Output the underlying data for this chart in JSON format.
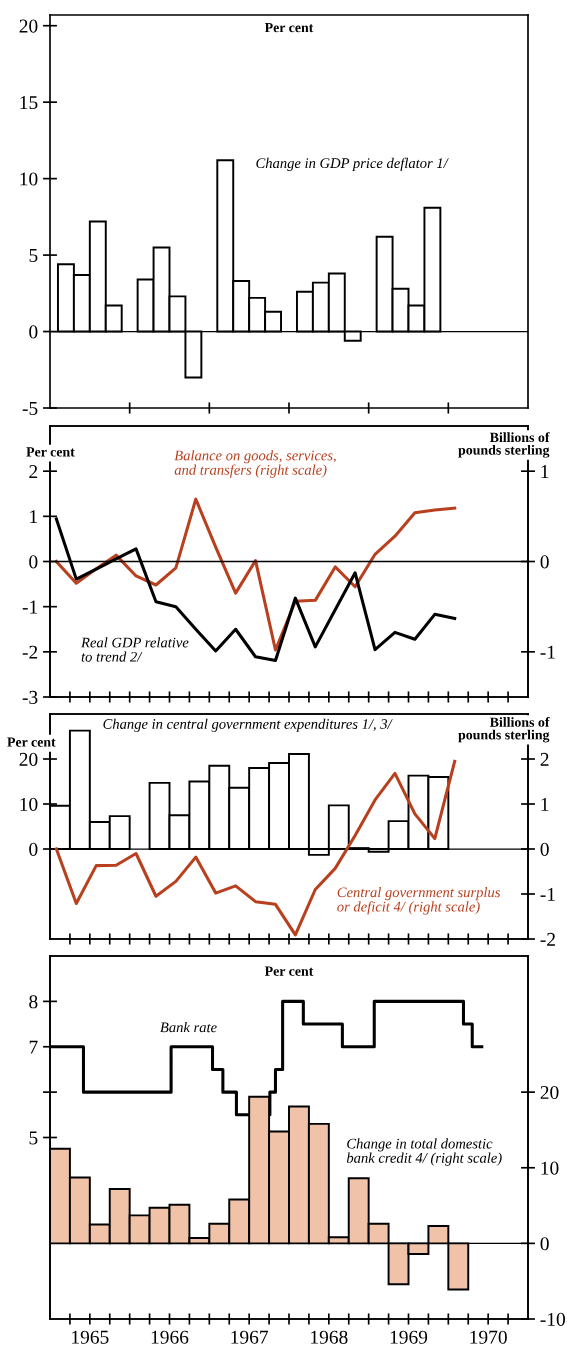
{
  "chart_data": [
    {
      "type": "bar",
      "ylabel": "Per cent",
      "xlim": [
        1965,
        1971
      ],
      "xticks": [
        {
          "value": 1966,
          "label": null
        },
        {
          "value": 1967,
          "label": null
        },
        {
          "value": 1968,
          "label": null
        },
        {
          "value": 1969,
          "label": null
        },
        {
          "value": 1970,
          "label": null
        }
      ],
      "ylim": [
        -5,
        20.7
      ],
      "yticks": [
        -5,
        0,
        5,
        10,
        15,
        20
      ],
      "tick_labels": "y",
      "legend": false,
      "grid": false,
      "ref_lines": [
        {
          "axis": "y",
          "value": 0
        }
      ],
      "series": [
        {
          "name": "Change in GDP price deflator 1/",
          "type": "bar",
          "color": "#ffffff",
          "x": [
            1965.2,
            1965.4,
            1965.6,
            1965.8,
            1966.2,
            1966.4,
            1966.6,
            1966.8,
            1967.2,
            1967.4,
            1967.6,
            1967.8,
            1968.2,
            1968.4,
            1968.6,
            1968.8,
            1969.2,
            1969.4,
            1969.6,
            1969.8
          ],
          "values": [
            4.4,
            3.7,
            7.2,
            1.7,
            3.4,
            5.5,
            2.3,
            -3.0,
            11.2,
            3.3,
            2.2,
            1.3,
            2.6,
            3.2,
            3.8,
            -0.6,
            6.2,
            2.8,
            1.7,
            8.1
          ]
        }
      ]
    },
    {
      "type": "line",
      "ylabel": "Per cent",
      "y2label": "Billions of\npounds sterling",
      "xlim": [
        1965,
        1971
      ],
      "xticks": [
        {
          "value": 1965.25,
          "label": null
        },
        {
          "value": 1965.5,
          "label": null
        },
        {
          "value": 1965.75,
          "label": null
        },
        {
          "value": 1966,
          "label": null
        },
        {
          "value": 1966.25,
          "label": null
        },
        {
          "value": 1966.5,
          "label": null
        },
        {
          "value": 1966.75,
          "label": null
        },
        {
          "value": 1967,
          "label": null
        },
        {
          "value": 1967.25,
          "label": null
        },
        {
          "value": 1967.5,
          "label": null
        },
        {
          "value": 1967.75,
          "label": null
        },
        {
          "value": 1968,
          "label": null
        },
        {
          "value": 1968.25,
          "label": null
        },
        {
          "value": 1968.5,
          "label": null
        },
        {
          "value": 1968.75,
          "label": null
        },
        {
          "value": 1969,
          "label": null
        },
        {
          "value": 1969.25,
          "label": null
        },
        {
          "value": 1969.5,
          "label": null
        },
        {
          "value": 1969.75,
          "label": null
        },
        {
          "value": 1970,
          "label": null
        },
        {
          "value": 1970.25,
          "label": null
        },
        {
          "value": 1970.5,
          "label": null
        },
        {
          "value": 1970.75,
          "label": null
        }
      ],
      "ylim": [
        -3,
        3
      ],
      "yticks": [
        -3,
        -2,
        -1,
        0,
        1,
        2
      ],
      "y2lim": [
        -1.5,
        1.5
      ],
      "y2ticks": [
        -1,
        0,
        1
      ],
      "tick_labels": "y",
      "legend": false,
      "grid": false,
      "ref_lines": [
        {
          "axis": "y",
          "value": 0
        }
      ],
      "x": [
        1965.08,
        1965.33,
        1965.58,
        1965.83,
        1966.08,
        1966.33,
        1966.58,
        1966.83,
        1967.08,
        1967.33,
        1967.58,
        1967.83,
        1968.08,
        1968.33,
        1968.58,
        1968.83,
        1969.08,
        1969.33,
        1969.58,
        1969.83,
        1970.08
      ],
      "series": [
        {
          "name": "Balance on goods, services,\nand transfers (right scale)",
          "color": "#b8401f",
          "axis": "y2",
          "values": [
            0,
            -0.24,
            -0.08,
            0.07,
            -0.16,
            -0.26,
            -0.07,
            0.69,
            0.16,
            -0.35,
            0.01,
            -0.98,
            -0.44,
            -0.43,
            -0.06,
            -0.28,
            0.08,
            0.28,
            0.54,
            0.57,
            0.59
          ]
        },
        {
          "name": "Real GDP relative\nto trend 2/",
          "color": "#000000",
          "values": [
            0.94,
            -0.39,
            -0.17,
            0.06,
            0.28,
            -0.89,
            -1.0,
            -1.5,
            -1.98,
            -1.5,
            -2.11,
            -2.19,
            -0.81,
            -1.89,
            -1.07,
            -0.25,
            -1.95,
            -1.57,
            -1.72,
            -1.17,
            -1.26
          ]
        }
      ]
    },
    {
      "type": "bar",
      "ylabel": "Per cent",
      "y2label": "Billions of\npounds sterling",
      "xlim": [
        1965,
        1971
      ],
      "xticks": [
        {
          "value": 1965.25,
          "label": null
        },
        {
          "value": 1965.5,
          "label": null
        },
        {
          "value": 1965.75,
          "label": null
        },
        {
          "value": 1966,
          "label": null
        },
        {
          "value": 1966.25,
          "label": null
        },
        {
          "value": 1966.5,
          "label": null
        },
        {
          "value": 1966.75,
          "label": null
        },
        {
          "value": 1967,
          "label": null
        },
        {
          "value": 1967.25,
          "label": null
        },
        {
          "value": 1967.5,
          "label": null
        },
        {
          "value": 1967.75,
          "label": null
        },
        {
          "value": 1968,
          "label": null
        },
        {
          "value": 1968.25,
          "label": null
        },
        {
          "value": 1968.5,
          "label": null
        },
        {
          "value": 1968.75,
          "label": null
        },
        {
          "value": 1969,
          "label": null
        },
        {
          "value": 1969.25,
          "label": null
        },
        {
          "value": 1969.5,
          "label": null
        },
        {
          "value": 1969.75,
          "label": null
        },
        {
          "value": 1970,
          "label": null
        },
        {
          "value": 1970.25,
          "label": null
        },
        {
          "value": 1970.5,
          "label": null
        },
        {
          "value": 1970.75,
          "label": null
        }
      ],
      "ylim": [
        -20,
        30
      ],
      "yticks": [
        0,
        10,
        20
      ],
      "y2lim": [
        -2,
        3
      ],
      "y2ticks": [
        -2,
        -1,
        0,
        1,
        2
      ],
      "tick_labels": "y",
      "legend": false,
      "grid": false,
      "ref_lines": [
        {
          "axis": "y",
          "value": 0
        }
      ],
      "series": [
        {
          "name": "Change in central government expenditures 1/, 3/",
          "type": "bar",
          "color": "#ffffff",
          "x": [
            1965.125,
            1965.375,
            1965.625,
            1965.875,
            1966.125,
            1966.375,
            1966.625,
            1966.875,
            1967.125,
            1967.375,
            1967.625,
            1967.875,
            1968.125,
            1968.375,
            1968.625,
            1968.875,
            1969.125,
            1969.375,
            1969.625,
            1969.875
          ],
          "values": [
            9.6,
            26.3,
            6.0,
            7.3,
            null,
            14.7,
            7.5,
            15.0,
            18.5,
            13.6,
            18.0,
            19.1,
            21.1,
            -1.3,
            9.7,
            0.2,
            -0.6,
            6.2,
            16.3,
            16.0
          ]
        },
        {
          "name": "Central government surplus\nor deficit 4/ (right scale)",
          "type": "line",
          "color": "#b8401f",
          "axis": "y2",
          "x": [
            1965.08,
            1965.33,
            1965.58,
            1965.83,
            1966.08,
            1966.33,
            1966.58,
            1966.83,
            1967.08,
            1967.33,
            1967.58,
            1967.83,
            1968.08,
            1968.33,
            1968.58,
            1968.83,
            1969.08,
            1969.33,
            1969.58,
            1969.83,
            1970.08
          ],
          "values": [
            0,
            -1.21,
            -0.37,
            -0.36,
            -0.1,
            -1.05,
            -0.72,
            -0.18,
            -0.98,
            -0.82,
            -1.17,
            -1.23,
            -1.91,
            -0.9,
            -0.43,
            0.3,
            1.09,
            1.68,
            0.78,
            0.23,
            1.95
          ]
        }
      ]
    },
    {
      "type": "bar",
      "ylabel": "Per cent",
      "xlim": [
        1965,
        1971
      ],
      "xticks": [
        {
          "value": 1965.25,
          "label": null
        },
        {
          "value": 1965.5,
          "label": "1965"
        },
        {
          "value": 1965.75,
          "label": null
        },
        {
          "value": 1966,
          "label": null
        },
        {
          "value": 1966.25,
          "label": null
        },
        {
          "value": 1966.5,
          "label": "1966"
        },
        {
          "value": 1966.75,
          "label": null
        },
        {
          "value": 1967,
          "label": null
        },
        {
          "value": 1967.25,
          "label": null
        },
        {
          "value": 1967.5,
          "label": "1967"
        },
        {
          "value": 1967.75,
          "label": null
        },
        {
          "value": 1968,
          "label": null
        },
        {
          "value": 1968.25,
          "label": null
        },
        {
          "value": 1968.5,
          "label": "1968"
        },
        {
          "value": 1968.75,
          "label": null
        },
        {
          "value": 1969,
          "label": null
        },
        {
          "value": 1969.25,
          "label": null
        },
        {
          "value": 1969.5,
          "label": "1969"
        },
        {
          "value": 1969.75,
          "label": null
        },
        {
          "value": 1970,
          "label": null
        },
        {
          "value": 1970.25,
          "label": null
        },
        {
          "value": 1970.5,
          "label": "1970"
        },
        {
          "value": 1970.75,
          "label": null
        }
      ],
      "ylim": [
        1,
        9
      ],
      "yticks": [
        5,
        {
          "value": 6,
          "label": null
        },
        7,
        8
      ],
      "y2lim": [
        -10,
        38
      ],
      "y2ticks": [
        -10,
        0,
        10,
        20
      ],
      "legend": false,
      "grid": false,
      "ref_lines": [
        {
          "axis": "y2",
          "value": 0
        }
      ],
      "series": [
        {
          "name": "Bank rate",
          "type": "step",
          "color": "#000000",
          "x": [
            1965.03,
            1965.42,
            1966.52,
            1967.04,
            1967.17,
            1967.34,
            1967.76,
            1967.83,
            1967.92,
            1968.18,
            1968.67,
            1969.07,
            1970.19,
            1970.3,
            1970.42
          ],
          "values": [
            7,
            6,
            7,
            6.5,
            6,
            5.5,
            6,
            6.5,
            8,
            7.5,
            7,
            8,
            7.5,
            7,
            7
          ]
        },
        {
          "name": "Change in total domestic\nbank credit 4/ (right scale)",
          "type": "bar",
          "color": "#f0c2a8",
          "axis": "y2",
          "x": [
            1965.125,
            1965.375,
            1965.625,
            1965.875,
            1966.125,
            1966.375,
            1966.625,
            1966.875,
            1967.125,
            1967.375,
            1967.625,
            1967.875,
            1968.125,
            1968.375,
            1968.625,
            1968.875,
            1969.125,
            1969.375,
            1969.625,
            1969.875,
            1970.125
          ],
          "values": [
            12.5,
            8.7,
            2.5,
            7.2,
            3.7,
            4.7,
            5.1,
            0.7,
            2.6,
            5.8,
            19.4,
            14.8,
            18.1,
            15.8,
            0.8,
            8.6,
            2.6,
            -5.4,
            -1.4,
            2.3,
            -6.1
          ]
        }
      ]
    }
  ]
}
